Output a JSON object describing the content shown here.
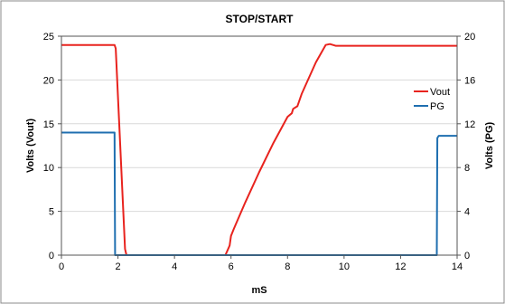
{
  "chart_data": {
    "type": "line",
    "title": "STOP/START",
    "xlabel": "mS",
    "ylabel": "Volts (Vout)",
    "y2label": "Volts (PG)",
    "xlim": [
      0,
      14
    ],
    "ylim": [
      0,
      25
    ],
    "y2lim": [
      0,
      20
    ],
    "xticks": [
      "0",
      "2",
      "4",
      "6",
      "8",
      "10",
      "12",
      "14"
    ],
    "yticks": [
      "0",
      "5",
      "10",
      "15",
      "20",
      "25"
    ],
    "y2ticks": [
      "0",
      "4",
      "8",
      "12",
      "16",
      "20"
    ],
    "grid": "horizontal",
    "legend_position": "right",
    "series": [
      {
        "name": "Vout",
        "axis": "left",
        "color": "#e8231e",
        "x": [
          0,
          1.88,
          1.92,
          2.25,
          2.3,
          5.8,
          5.95,
          6.0,
          6.1,
          6.5,
          7.0,
          7.5,
          8.0,
          8.15,
          8.2,
          8.35,
          8.5,
          9.0,
          9.35,
          9.5,
          9.7,
          14
        ],
        "y": [
          24,
          24,
          23.6,
          0.7,
          0,
          0,
          1.1,
          2.2,
          3,
          6,
          9.5,
          12.8,
          15.8,
          16.2,
          16.7,
          17,
          18.4,
          22,
          24,
          24.1,
          23.9,
          23.9
        ]
      },
      {
        "name": "PG",
        "axis": "right",
        "color": "#1f6fb0",
        "x": [
          0,
          1.88,
          1.9,
          13.28,
          13.3,
          13.35,
          14
        ],
        "y": [
          11.2,
          11.2,
          0,
          0,
          10.7,
          10.9,
          10.9
        ]
      }
    ]
  }
}
